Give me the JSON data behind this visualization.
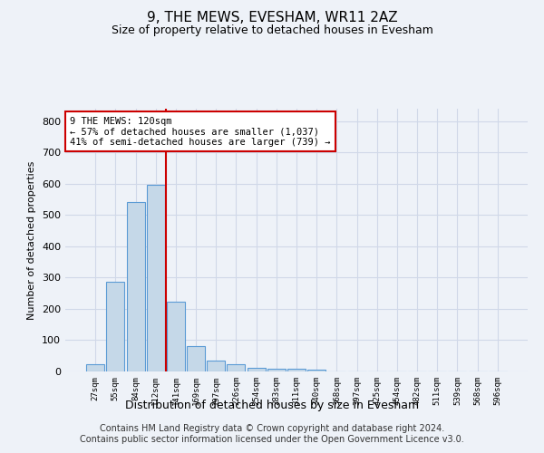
{
  "title": "9, THE MEWS, EVESHAM, WR11 2AZ",
  "subtitle": "Size of property relative to detached houses in Evesham",
  "xlabel": "Distribution of detached houses by size in Evesham",
  "ylabel": "Number of detached properties",
  "categories": [
    "27sqm",
    "55sqm",
    "84sqm",
    "112sqm",
    "141sqm",
    "169sqm",
    "197sqm",
    "226sqm",
    "254sqm",
    "283sqm",
    "311sqm",
    "340sqm",
    "368sqm",
    "397sqm",
    "425sqm",
    "454sqm",
    "482sqm",
    "511sqm",
    "539sqm",
    "568sqm",
    "596sqm"
  ],
  "bar_values": [
    22,
    288,
    543,
    598,
    223,
    80,
    35,
    24,
    13,
    10,
    8,
    5,
    0,
    0,
    0,
    0,
    0,
    0,
    0,
    0,
    0
  ],
  "bar_color": "#c5d8e8",
  "bar_edge_color": "#5b9bd5",
  "grid_color": "#d0d8e8",
  "bg_color": "#eef2f8",
  "vline_color": "#cc0000",
  "vline_pos": 3.5,
  "annotation_text": "9 THE MEWS: 120sqm\n← 57% of detached houses are smaller (1,037)\n41% of semi-detached houses are larger (739) →",
  "annotation_box_color": "#ffffff",
  "annotation_box_edge": "#cc0000",
  "footer_text": "Contains HM Land Registry data © Crown copyright and database right 2024.\nContains public sector information licensed under the Open Government Licence v3.0.",
  "ylim": [
    0,
    840
  ],
  "yticks": [
    0,
    100,
    200,
    300,
    400,
    500,
    600,
    700,
    800
  ],
  "title_fontsize": 11,
  "subtitle_fontsize": 9,
  "footer_fontsize": 7
}
